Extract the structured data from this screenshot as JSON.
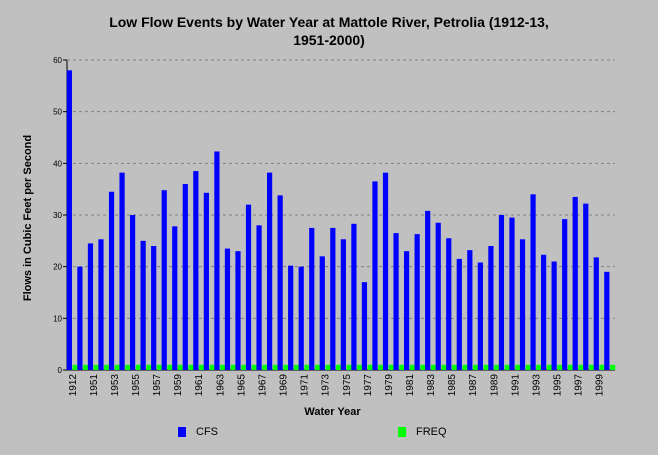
{
  "chart_data": {
    "type": "bar",
    "title_lines": [
      "Low Flow Events by Water Year at Mattole River, Petrolia (1912-13,",
      "1951-2000)"
    ],
    "xlabel": "Water Year",
    "ylabel": "Flows in Cubic Feet per Second",
    "ylim": [
      0,
      60
    ],
    "yticks": [
      0,
      10,
      20,
      30,
      40,
      50,
      60
    ],
    "grid": true,
    "legend_position": "bottom",
    "categories": [
      "1912",
      "1913",
      "1951",
      "1952",
      "1953",
      "1954",
      "1955",
      "1956",
      "1957",
      "1958",
      "1959",
      "1960",
      "1961",
      "1962",
      "1963",
      "1964",
      "1965",
      "1966",
      "1967",
      "1968",
      "1969",
      "1970",
      "1971",
      "1972",
      "1973",
      "1974",
      "1975",
      "1976",
      "1977",
      "1978",
      "1979",
      "1980",
      "1981",
      "1982",
      "1983",
      "1984",
      "1985",
      "1986",
      "1987",
      "1988",
      "1989",
      "1990",
      "1991",
      "1992",
      "1993",
      "1994",
      "1995",
      "1996",
      "1997",
      "1998",
      "1999",
      "2000"
    ],
    "tick_labels_shown": [
      "1912",
      "1951",
      "1953",
      "1955",
      "1957",
      "1959",
      "1961",
      "1963",
      "1965",
      "1967",
      "1969",
      "1971",
      "1973",
      "1975",
      "1977",
      "1979",
      "1981",
      "1983",
      "1985",
      "1987",
      "1989",
      "1991",
      "1993",
      "1995",
      "1997",
      "1999"
    ],
    "series": [
      {
        "name": "CFS",
        "color": "#0000ff",
        "values": [
          58,
          20,
          24.5,
          25.3,
          34.5,
          38.2,
          30,
          25,
          24,
          34.8,
          27.8,
          36,
          38.5,
          34.3,
          42.3,
          23.5,
          23,
          32,
          28,
          38.2,
          33.8,
          20.2,
          20,
          27.5,
          22,
          27.5,
          25.3,
          28.3,
          17,
          36.5,
          38.2,
          26.5,
          23,
          26.3,
          30.8,
          28.5,
          25.5,
          21.5,
          23.2,
          20.8,
          24,
          30,
          29.5,
          25.3,
          34,
          22.3,
          21,
          29.2,
          33.5,
          32.2,
          21.8,
          19
        ]
      },
      {
        "name": "FREQ",
        "color": "#00ff00",
        "values": [
          1,
          1,
          1,
          1,
          1,
          1,
          1,
          1,
          1,
          1,
          1,
          1,
          1,
          1,
          1,
          1,
          1,
          1,
          1,
          1,
          1,
          1,
          1,
          1,
          1,
          1,
          1,
          1,
          1,
          1,
          1,
          1,
          1,
          1,
          1,
          1,
          1,
          1,
          1,
          1,
          1,
          1,
          1,
          1,
          1,
          1,
          1,
          1,
          1,
          1,
          1,
          1
        ]
      }
    ]
  }
}
